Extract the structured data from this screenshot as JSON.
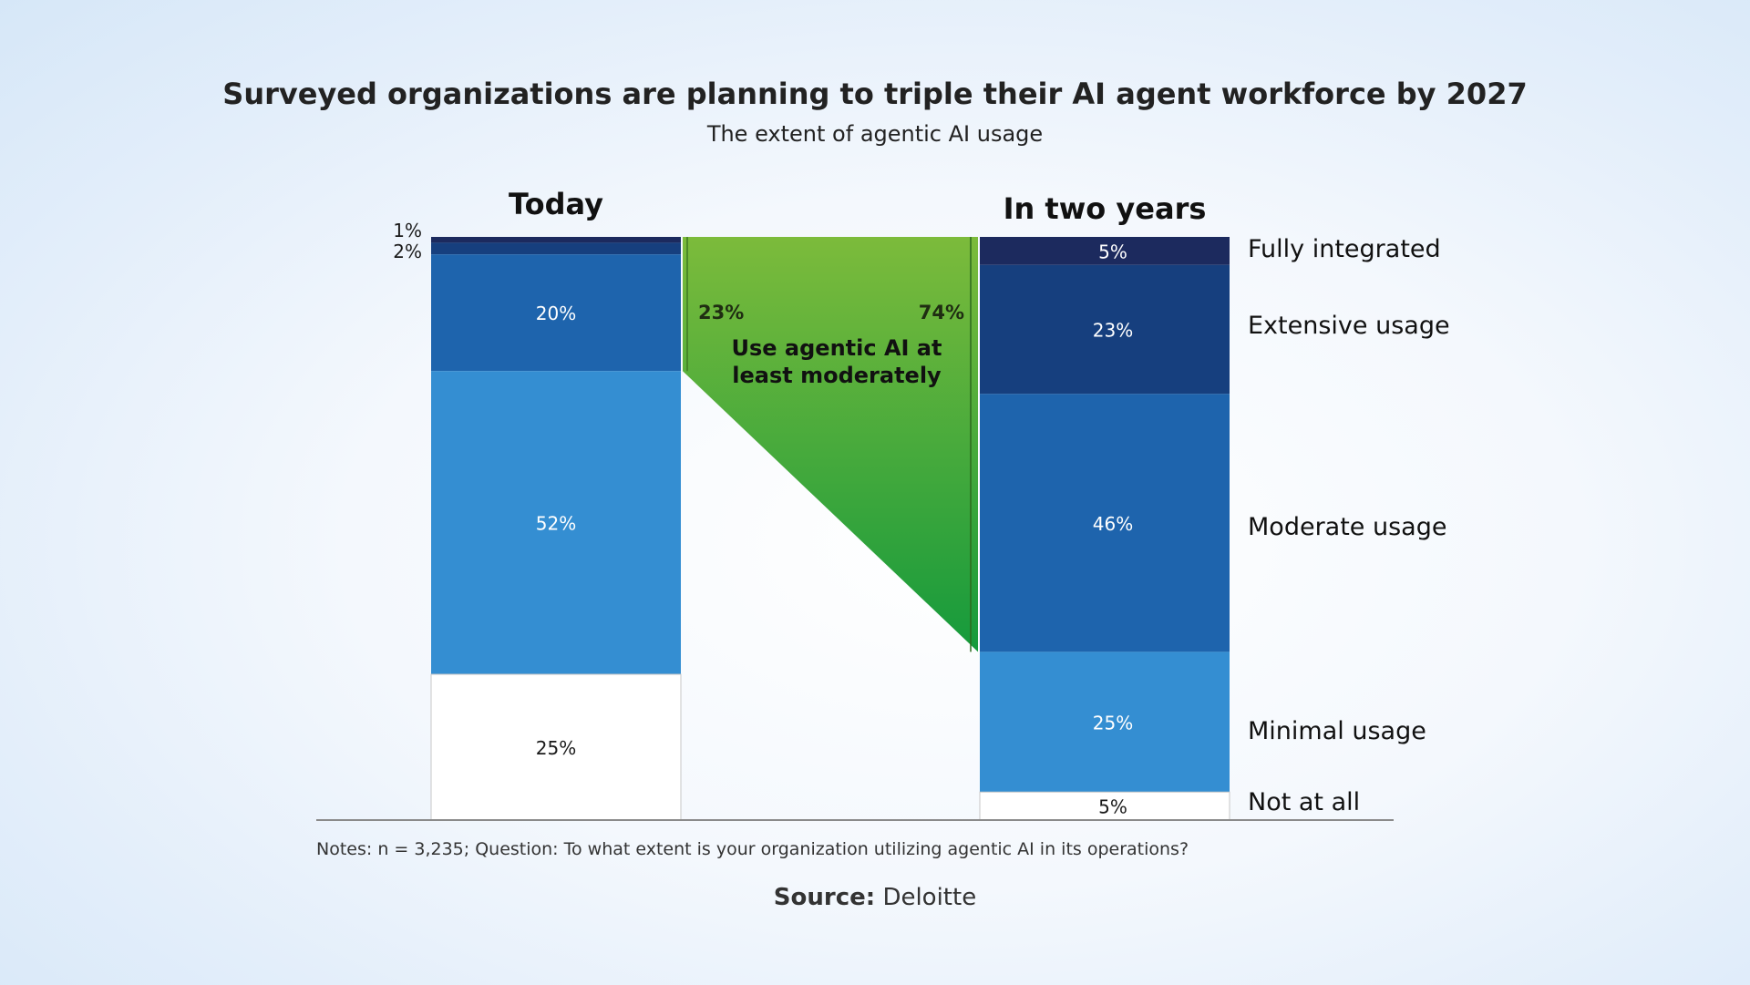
{
  "chart_data": {
    "type": "stacked-bar",
    "title": "Surveyed organizations are planning to triple their AI agent workforce by 2027",
    "subtitle": "The extent of agentic AI usage",
    "categories": [
      "Today",
      "In two years"
    ],
    "series": [
      {
        "name": "Fully integrated",
        "values": [
          1,
          5
        ],
        "labels": [
          "1%",
          "5%"
        ],
        "color": "#1c2a5e"
      },
      {
        "name": "Extensive usage",
        "values": [
          2,
          23
        ],
        "labels": [
          "2%",
          "23%"
        ],
        "color": "#163f7e"
      },
      {
        "name": "Moderate usage",
        "values": [
          20,
          46
        ],
        "labels": [
          "20%",
          "46%"
        ],
        "color": "#1e64ad"
      },
      {
        "name": "Minimal usage",
        "values": [
          52,
          25
        ],
        "labels": [
          "52%",
          "25%"
        ],
        "color": "#348ed2"
      },
      {
        "name": "Not at all",
        "values": [
          25,
          5
        ],
        "labels": [
          "25%",
          "5%"
        ],
        "color": "#ffffff"
      }
    ],
    "annotation": {
      "text_line1": "Use agentic AI at",
      "text_line2": "least moderately",
      "left_value": "23%",
      "right_value": "74%",
      "color_top": "#7cbb3b",
      "color_bottom": "#159a3c"
    }
  },
  "notes": "Notes: n = 3,235; Question: To what extent is your organization utilizing agentic AI in its operations?",
  "source": {
    "label": "Source:",
    "value": "Deloitte"
  }
}
